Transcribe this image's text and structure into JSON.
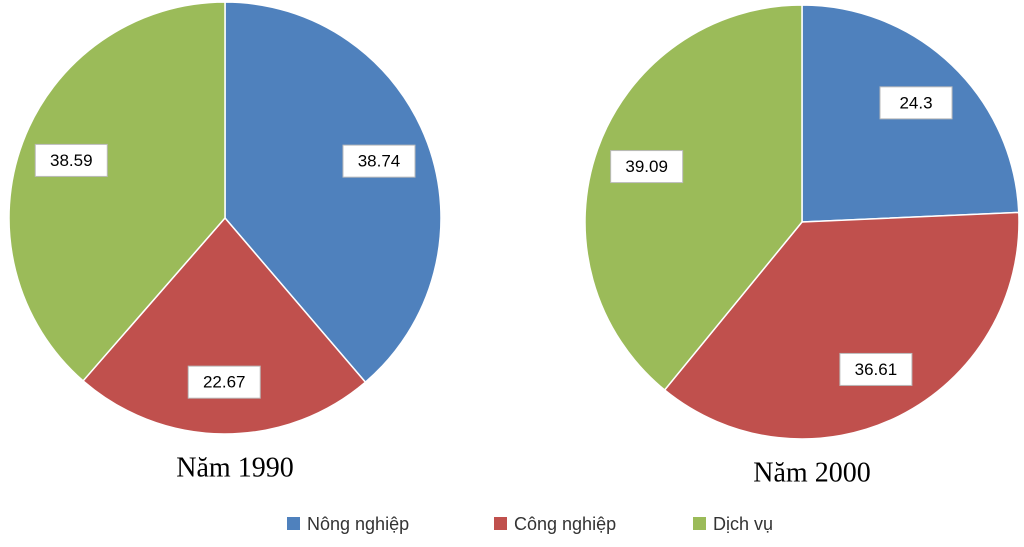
{
  "chart_data": [
    {
      "type": "pie",
      "title": "Năm 1990",
      "categories": [
        "Nông nghiệp",
        "Công nghiệp",
        "Dịch vụ"
      ],
      "values": [
        38.74,
        22.67,
        38.59
      ],
      "colors": [
        "#4f81bd",
        "#c0504d",
        "#9bbb59"
      ]
    },
    {
      "type": "pie",
      "title": "Năm 2000",
      "categories": [
        "Nông nghiệp",
        "Công nghiệp",
        "Dịch vụ"
      ],
      "values": [
        24.3,
        36.61,
        39.09
      ],
      "colors": [
        "#4f81bd",
        "#c0504d",
        "#9bbb59"
      ]
    }
  ]
}
